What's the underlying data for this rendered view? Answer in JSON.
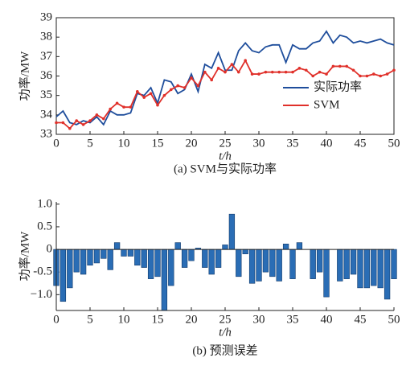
{
  "chart_data": [
    {
      "type": "line",
      "caption": "(a) SVM与实际功率",
      "xlabel": "t/h",
      "ylabel": "功率/MW",
      "x": [
        0,
        1,
        2,
        3,
        4,
        5,
        6,
        7,
        8,
        9,
        10,
        11,
        12,
        13,
        14,
        15,
        16,
        17,
        18,
        19,
        20,
        21,
        22,
        23,
        24,
        25,
        26,
        27,
        28,
        29,
        30,
        31,
        32,
        33,
        34,
        35,
        36,
        37,
        38,
        39,
        40,
        41,
        42,
        43,
        44,
        45,
        46,
        47,
        48,
        49,
        50
      ],
      "series": [
        {
          "name": "实际功率",
          "color": "#1f4e9c",
          "values": [
            33.9,
            34.2,
            33.6,
            33.5,
            33.7,
            33.6,
            33.9,
            33.5,
            34.2,
            34.0,
            34.0,
            34.1,
            35.1,
            35.0,
            35.4,
            34.6,
            35.8,
            35.7,
            35.1,
            35.3,
            36.1,
            35.2,
            36.6,
            36.4,
            37.2,
            36.3,
            36.3,
            37.3,
            37.7,
            37.3,
            37.2,
            37.5,
            37.6,
            37.6,
            36.7,
            37.6,
            37.4,
            37.4,
            37.7,
            37.8,
            38.3,
            37.7,
            38.1,
            38.0,
            37.7,
            37.8,
            37.7,
            37.8,
            37.9,
            37.7,
            37.6
          ]
        },
        {
          "name": "SVM",
          "color": "#e0302a",
          "values": [
            33.6,
            33.6,
            33.3,
            33.7,
            33.5,
            33.7,
            34.0,
            33.8,
            34.3,
            34.6,
            34.4,
            34.4,
            35.2,
            34.9,
            35.1,
            34.5,
            35.0,
            35.3,
            35.5,
            35.4,
            35.9,
            35.5,
            36.2,
            35.8,
            36.4,
            36.2,
            36.6,
            36.2,
            36.8,
            36.1,
            36.1,
            36.2,
            36.2,
            36.2,
            36.2,
            36.2,
            36.4,
            36.3,
            36.0,
            36.2,
            36.1,
            36.5,
            36.5,
            36.5,
            36.3,
            36.0,
            36.0,
            36.1,
            36.0,
            36.1,
            36.3
          ]
        }
      ],
      "xlim": [
        0,
        50
      ],
      "xticks": [
        0,
        5,
        10,
        15,
        20,
        25,
        30,
        35,
        40,
        45,
        50
      ],
      "ylim": [
        33,
        39
      ],
      "yticks": [
        33,
        34,
        35,
        36,
        37,
        38,
        39
      ],
      "legend": "lower right"
    },
    {
      "type": "bar",
      "caption": "(b) 预测误差",
      "xlabel": "t/h",
      "ylabel": "功率/MW",
      "color": "#2a6db5",
      "x": [
        0,
        1,
        2,
        3,
        4,
        5,
        6,
        7,
        8,
        9,
        10,
        11,
        12,
        13,
        14,
        15,
        16,
        17,
        18,
        19,
        20,
        21,
        22,
        23,
        24,
        25,
        26,
        27,
        28,
        29,
        30,
        31,
        32,
        33,
        34,
        35,
        36,
        37,
        38,
        39,
        40,
        41,
        42,
        43,
        44,
        45,
        46,
        47,
        48,
        49,
        50
      ],
      "values": [
        -0.8,
        -1.15,
        -0.85,
        -0.5,
        -0.55,
        -0.35,
        -0.3,
        -0.2,
        -0.45,
        0.15,
        -0.15,
        -0.15,
        -0.35,
        -0.4,
        -0.65,
        -0.6,
        -1.35,
        -0.8,
        0.15,
        -0.4,
        -0.25,
        0.03,
        -0.4,
        -0.55,
        -0.4,
        0.1,
        0.78,
        -0.6,
        -0.1,
        -0.75,
        -0.7,
        -0.5,
        -0.6,
        -0.7,
        0.12,
        -0.65,
        0.15,
        0,
        -0.65,
        -0.5,
        -1.05,
        0,
        -0.7,
        -0.65,
        -0.55,
        -0.85,
        -0.85,
        -0.8,
        -0.85,
        -1.1,
        -0.65
      ],
      "xlim": [
        0,
        50
      ],
      "xticks": [
        0,
        5,
        10,
        15,
        20,
        25,
        30,
        35,
        40,
        45,
        50
      ],
      "ylim": [
        -1.35,
        1.05
      ],
      "yticks": [
        {
          "value": -1,
          "label": "−1.0"
        },
        -0.5,
        0,
        0.5,
        {
          "value": 1,
          "label": "1.0"
        }
      ]
    }
  ]
}
